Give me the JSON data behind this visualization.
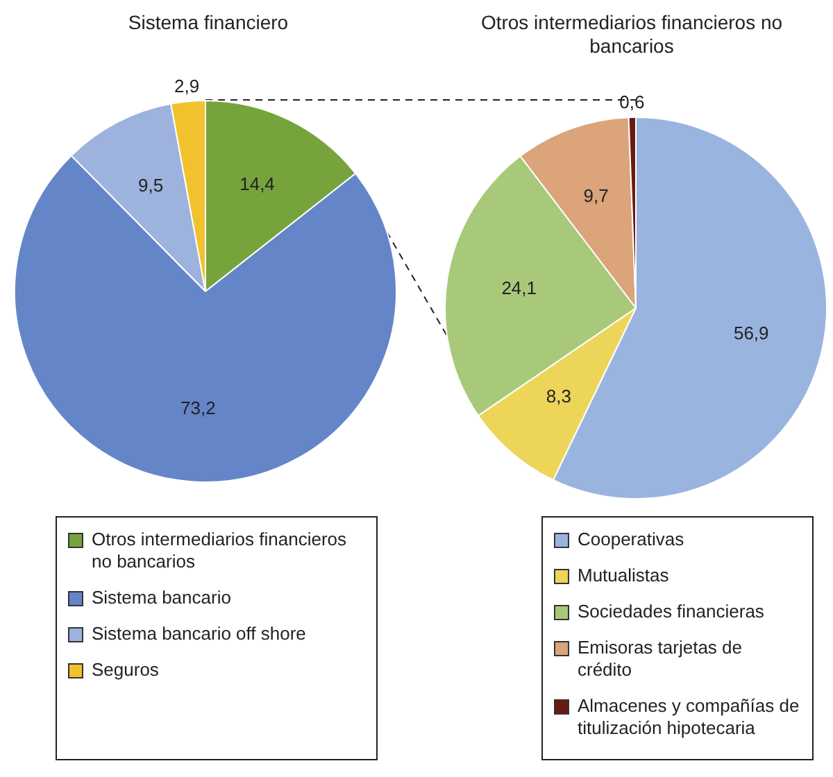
{
  "chart_data": [
    {
      "type": "pie",
      "title": "Sistema financiero",
      "categories": [
        "Otros intermediarios financieros no bancarios",
        "Sistema bancario",
        "Sistema bancario off shore",
        "Seguros"
      ],
      "values": [
        14.4,
        73.2,
        9.5,
        2.9
      ],
      "value_labels": [
        "14,4",
        "73,2",
        "9,5",
        "2,9"
      ],
      "colors": [
        "#76a33c",
        "#6585c9",
        "#9db3dd",
        "#f2c12e"
      ],
      "legend": "bottom"
    },
    {
      "type": "pie",
      "title": "Otros intermediarios financieros no bancarios",
      "categories": [
        "Cooperativas",
        "Mutualistas",
        "Sociedades financieras",
        "Emisoras tarjetas de crédito",
        "Almacenes y compañías de titulización hipotecaria"
      ],
      "values": [
        56.9,
        8.3,
        24.1,
        9.7,
        0.6
      ],
      "value_labels": [
        "56,9",
        "8,3",
        "24,1",
        "9,7",
        "0,6"
      ],
      "colors": [
        "#9ab4e0",
        "#edd55a",
        "#a8c97a",
        "#dba47b",
        "#6b1a10"
      ],
      "legend": "bottom"
    }
  ]
}
